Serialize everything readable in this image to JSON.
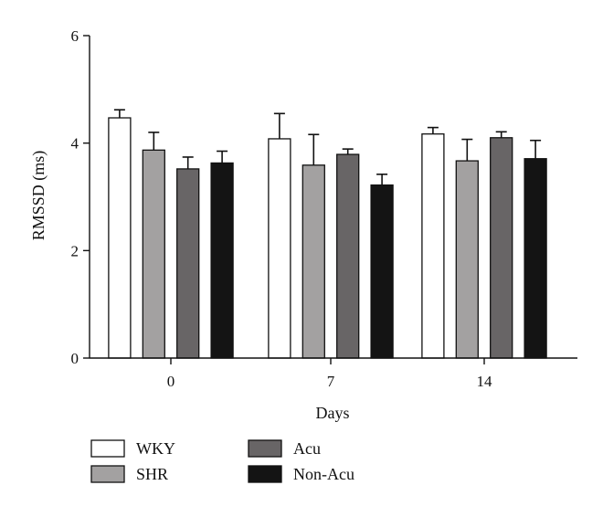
{
  "chart_data": {
    "type": "bar",
    "title": "",
    "xlabel": "Days",
    "ylabel": "RMSSD (ms)",
    "ylim": [
      0,
      6
    ],
    "yticks": [
      "0",
      "2",
      "4",
      "6"
    ],
    "categories": [
      "0",
      "7",
      "14"
    ],
    "error_bars": "upper",
    "grid": false,
    "legend_position": "bottom",
    "series": [
      {
        "name": "WKY",
        "values": [
          4.47,
          4.08,
          4.17
        ],
        "errors": [
          0.15,
          0.47,
          0.12
        ],
        "color": "#ffffff"
      },
      {
        "name": "SHR",
        "values": [
          3.87,
          3.59,
          3.67
        ],
        "errors": [
          0.33,
          0.57,
          0.4
        ],
        "color": "#a3a1a1"
      },
      {
        "name": "Acu",
        "values": [
          3.52,
          3.79,
          4.1
        ],
        "errors": [
          0.22,
          0.1,
          0.11
        ],
        "color": "#686566"
      },
      {
        "name": "Non-Acu",
        "values": [
          3.63,
          3.22,
          3.71
        ],
        "errors": [
          0.22,
          0.2,
          0.34
        ],
        "color": "#141414"
      }
    ]
  }
}
